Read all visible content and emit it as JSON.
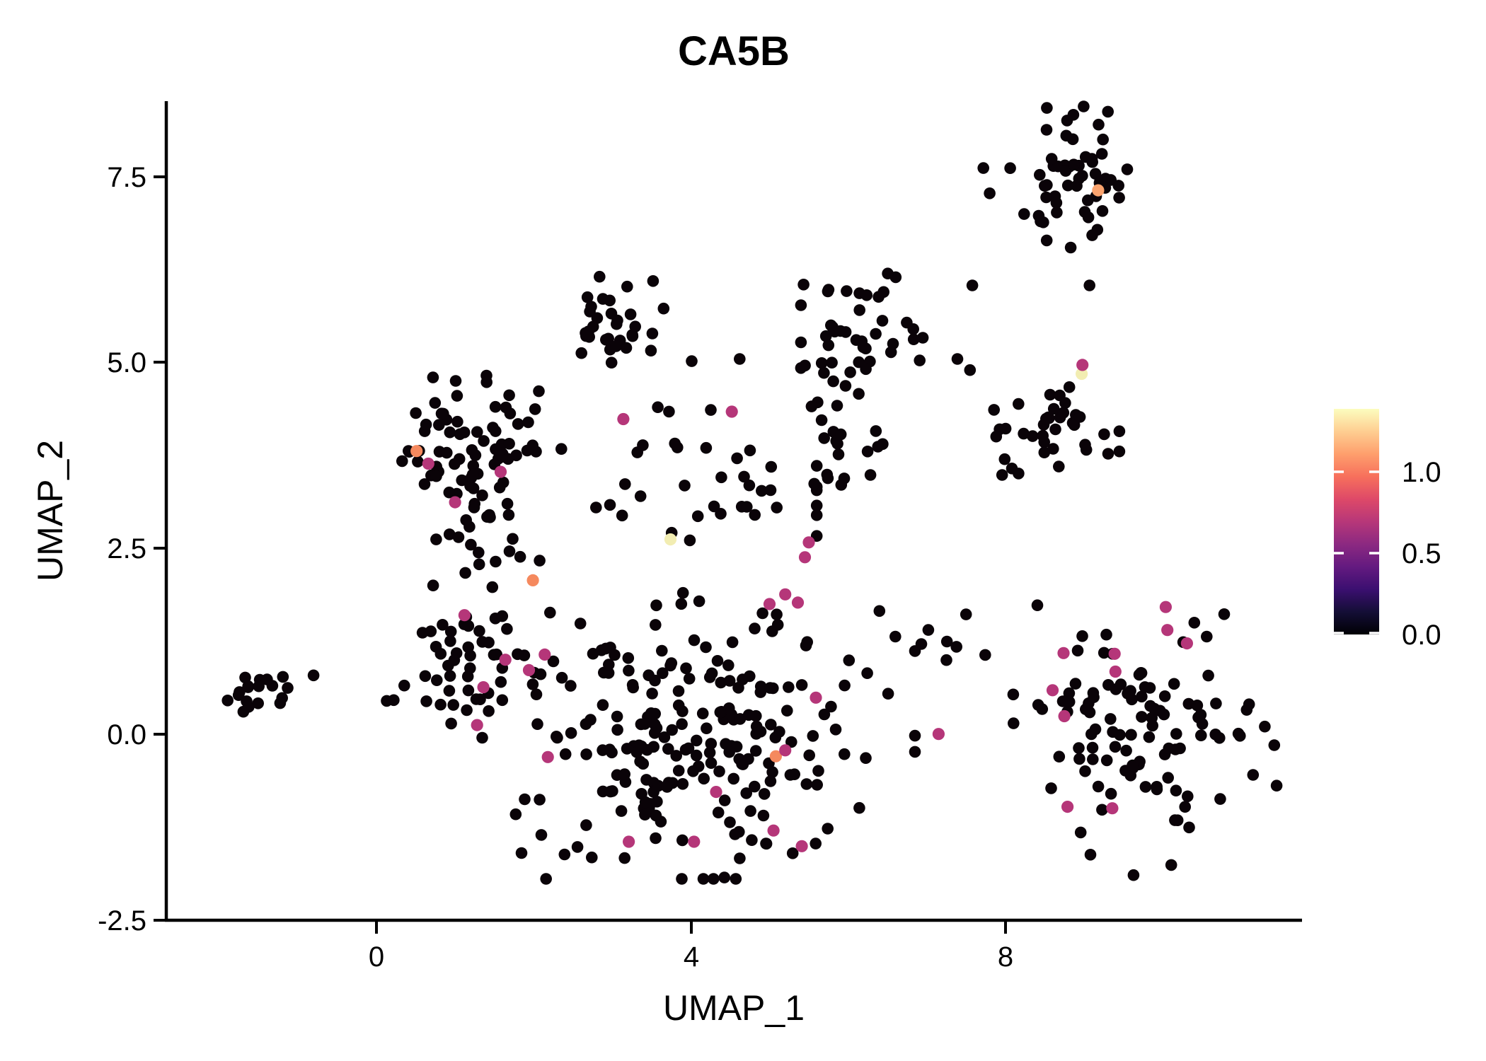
{
  "title": "CA5B",
  "axes": {
    "x": {
      "label": "UMAP_1",
      "tick_labels": [
        "0",
        "4",
        "8"
      ]
    },
    "y": {
      "label": "UMAP_2",
      "tick_labels": [
        "7.5",
        "5.0",
        "2.5",
        "0.0",
        "-2.5"
      ]
    }
  },
  "colorbar": {
    "tick_labels": [
      "1.0",
      "0.5",
      "0.0"
    ],
    "vmin": 0.0,
    "vmax": 1.39,
    "gradient_stops": [
      "#000004",
      "#140e36",
      "#3b0f70",
      "#641a80",
      "#8c2981",
      "#b73779",
      "#de4968",
      "#f7705c",
      "#fe9f6d",
      "#fece91",
      "#fcfdbf"
    ]
  },
  "chart_data": {
    "type": "scatter",
    "title": "CA5B",
    "xlabel": "UMAP_1",
    "ylabel": "UMAP_2",
    "xlim": [
      -2.67,
      11.77
    ],
    "ylim": [
      -2.5,
      8.52
    ],
    "x_ticks": [
      0,
      4,
      8
    ],
    "y_ticks": [
      7.5,
      5.0,
      2.5,
      0.0,
      -2.5
    ],
    "grid": false,
    "legend_position": "right-colorbar",
    "point_radius_px": 8.3,
    "colors": {
      "zero_expression": "#0a0308",
      "mid_expression": "#b53679",
      "high_expression": "#f5895e",
      "very_high_expression": "#fba36e",
      "max_expression": "#f2edb2"
    },
    "seed": 42,
    "background_clusters": [
      {
        "name": "far-left-clump",
        "n": 16,
        "cx": -1.58,
        "cy": 0.6,
        "sx": 0.17,
        "sy": 0.13,
        "clip": [
          -1.95,
          -1.2,
          0.3,
          0.95
        ]
      },
      {
        "name": "left-top",
        "n": 72,
        "cx": 1.15,
        "cy": 3.9,
        "sx": 0.5,
        "sy": 0.45,
        "clip": [
          0.05,
          2.45,
          2.95,
          4.95
        ]
      },
      {
        "name": "left-mid",
        "n": 20,
        "cx": 1.35,
        "cy": 2.55,
        "sx": 0.42,
        "sy": 0.33,
        "clip": [
          0.2,
          2.3,
          2.0,
          3.1
        ]
      },
      {
        "name": "left-bottom",
        "n": 48,
        "cx": 1.15,
        "cy": 1.0,
        "sx": 0.45,
        "sy": 0.5,
        "clip": [
          0.1,
          2.3,
          -0.05,
          2.0
        ]
      },
      {
        "name": "top-middle",
        "n": 32,
        "cx": 3.05,
        "cy": 5.6,
        "sx": 0.33,
        "sy": 0.28,
        "clip": [
          2.3,
          3.95,
          5.0,
          6.25
        ]
      },
      {
        "name": "upper-center-right",
        "n": 45,
        "cx": 6.05,
        "cy": 5.3,
        "sx": 0.4,
        "sy": 0.38,
        "clip": [
          5.4,
          6.95,
          4.4,
          6.2
        ]
      },
      {
        "name": "upper-center-right-tail",
        "n": 18,
        "cx": 5.9,
        "cy": 3.9,
        "sx": 0.35,
        "sy": 0.33,
        "clip": [
          5.3,
          6.6,
          3.3,
          4.5
        ]
      },
      {
        "name": "right-middle",
        "n": 38,
        "cx": 8.55,
        "cy": 4.05,
        "sx": 0.45,
        "sy": 0.33,
        "clip": [
          7.6,
          9.45,
          3.2,
          4.75
        ]
      },
      {
        "name": "top-right",
        "n": 55,
        "cx": 8.85,
        "cy": 7.5,
        "sx": 0.37,
        "sy": 0.42,
        "clip": [
          8.05,
          9.55,
          6.55,
          8.45
        ]
      },
      {
        "name": "center-band",
        "n": 38,
        "cx": 4.1,
        "cy": 3.3,
        "sx": 0.95,
        "sy": 0.5,
        "clip": [
          2.5,
          5.6,
          2.3,
          4.4
        ]
      },
      {
        "name": "bottom-center-core",
        "n": 150,
        "cx": 3.9,
        "cy": -0.1,
        "sx": 1.0,
        "sy": 0.85,
        "clip": [
          1.6,
          6.6,
          -1.95,
          1.9
        ]
      },
      {
        "name": "bottom-center-wide",
        "n": 75,
        "cx": 4.0,
        "cy": 0.2,
        "sx": 1.4,
        "sy": 1.0,
        "clip": [
          1.6,
          6.85,
          -1.95,
          1.95
        ]
      },
      {
        "name": "bottom-right",
        "n": 105,
        "cx": 9.7,
        "cy": 0.0,
        "sx": 0.72,
        "sy": 0.8,
        "clip": [
          8.1,
          11.45,
          -1.9,
          1.9
        ]
      },
      {
        "name": "right-fringe",
        "n": 7,
        "cx": 7.3,
        "cy": 1.3,
        "sx": 0.4,
        "sy": 0.28,
        "clip": [
          6.9,
          7.9,
          0.9,
          1.7
        ]
      }
    ],
    "extra_black_points": [
      [
        -1.19,
        0.77
      ],
      [
        -1.13,
        0.62
      ],
      [
        -0.8,
        0.79
      ],
      [
        4.01,
        5.02
      ],
      [
        4.62,
        5.05
      ],
      [
        6.91,
        5.03
      ],
      [
        7.39,
        5.05
      ],
      [
        7.55,
        4.9
      ],
      [
        9.07,
        6.04
      ],
      [
        7.58,
        6.04
      ],
      [
        9.01,
        7.03
      ],
      [
        9.17,
        6.79
      ],
      [
        7.72,
        7.62
      ],
      [
        7.8,
        7.28
      ],
      [
        11.1,
        0.4
      ],
      [
        11.3,
        0.1
      ],
      [
        11.42,
        -0.15
      ],
      [
        11.15,
        -0.55
      ]
    ],
    "expressing_points": [
      {
        "x": 9.18,
        "y": 7.32,
        "value": 1.15,
        "color": "#fba36e"
      },
      {
        "x": 8.97,
        "y": 4.85,
        "value": 1.35,
        "color": "#f2edb2"
      },
      {
        "x": 8.98,
        "y": 4.97,
        "value": 0.65,
        "color": "#b53679"
      },
      {
        "x": 3.74,
        "y": 2.62,
        "value": 1.3,
        "color": "#f2edb2"
      },
      {
        "x": 0.51,
        "y": 3.81,
        "value": 1.05,
        "color": "#f5895e"
      },
      {
        "x": 1.99,
        "y": 2.07,
        "value": 1.0,
        "color": "#f5895e"
      },
      {
        "x": 5.08,
        "y": -0.3,
        "value": 1.0,
        "color": "#f5895e"
      },
      {
        "x": 0.66,
        "y": 3.64,
        "value": 0.6,
        "color": "#b53679"
      },
      {
        "x": 1.58,
        "y": 3.53,
        "value": 0.6,
        "color": "#b53679"
      },
      {
        "x": 1.0,
        "y": 3.12,
        "value": 0.6,
        "color": "#b53679"
      },
      {
        "x": 3.14,
        "y": 4.24,
        "value": 0.62,
        "color": "#b53679"
      },
      {
        "x": 4.52,
        "y": 4.34,
        "value": 0.62,
        "color": "#b53679"
      },
      {
        "x": 1.12,
        "y": 1.6,
        "value": 0.58,
        "color": "#b53679"
      },
      {
        "x": 1.64,
        "y": 1.0,
        "value": 0.58,
        "color": "#b53679"
      },
      {
        "x": 2.14,
        "y": 1.07,
        "value": 0.6,
        "color": "#b53679"
      },
      {
        "x": 1.94,
        "y": 0.86,
        "value": 0.6,
        "color": "#b53679"
      },
      {
        "x": 1.36,
        "y": 0.63,
        "value": 0.6,
        "color": "#b53679"
      },
      {
        "x": 1.28,
        "y": 0.12,
        "value": 0.6,
        "color": "#b53679"
      },
      {
        "x": 2.18,
        "y": -0.31,
        "value": 0.58,
        "color": "#b53679"
      },
      {
        "x": 4.32,
        "y": -0.78,
        "value": 0.6,
        "color": "#b53679"
      },
      {
        "x": 3.21,
        "y": -1.45,
        "value": 0.58,
        "color": "#b53679"
      },
      {
        "x": 4.04,
        "y": -1.45,
        "value": 0.6,
        "color": "#b53679"
      },
      {
        "x": 5.05,
        "y": -1.3,
        "value": 0.6,
        "color": "#b53679"
      },
      {
        "x": 5.41,
        "y": -1.51,
        "value": 0.58,
        "color": "#b53679"
      },
      {
        "x": 5.5,
        "y": 2.58,
        "value": 0.62,
        "color": "#b53679"
      },
      {
        "x": 5.45,
        "y": 2.38,
        "value": 0.6,
        "color": "#b53679"
      },
      {
        "x": 5.2,
        "y": 1.88,
        "value": 0.6,
        "color": "#b53679"
      },
      {
        "x": 5.0,
        "y": 1.75,
        "value": 0.58,
        "color": "#b53679"
      },
      {
        "x": 5.36,
        "y": 1.77,
        "value": 0.6,
        "color": "#b53679"
      },
      {
        "x": 5.59,
        "y": 0.49,
        "value": 0.6,
        "color": "#b53679"
      },
      {
        "x": 7.15,
        "y": 0.0,
        "value": 0.62,
        "color": "#b53679"
      },
      {
        "x": 5.2,
        "y": -0.22,
        "value": 0.6,
        "color": "#b53679"
      },
      {
        "x": 8.74,
        "y": 1.09,
        "value": 0.62,
        "color": "#b53679"
      },
      {
        "x": 8.6,
        "y": 0.59,
        "value": 0.6,
        "color": "#b53679"
      },
      {
        "x": 8.75,
        "y": 0.24,
        "value": 0.6,
        "color": "#b53679"
      },
      {
        "x": 10.04,
        "y": 1.71,
        "value": 0.62,
        "color": "#b53679"
      },
      {
        "x": 10.06,
        "y": 1.4,
        "value": 0.6,
        "color": "#b53679"
      },
      {
        "x": 10.31,
        "y": 1.22,
        "value": 0.6,
        "color": "#b53679"
      },
      {
        "x": 9.39,
        "y": 1.08,
        "value": 0.6,
        "color": "#b53679"
      },
      {
        "x": 9.4,
        "y": 0.84,
        "value": 0.58,
        "color": "#b53679"
      },
      {
        "x": 8.79,
        "y": -0.98,
        "value": 0.6,
        "color": "#b53679"
      },
      {
        "x": 9.36,
        "y": -1.0,
        "value": 0.6,
        "color": "#b53679"
      }
    ]
  }
}
